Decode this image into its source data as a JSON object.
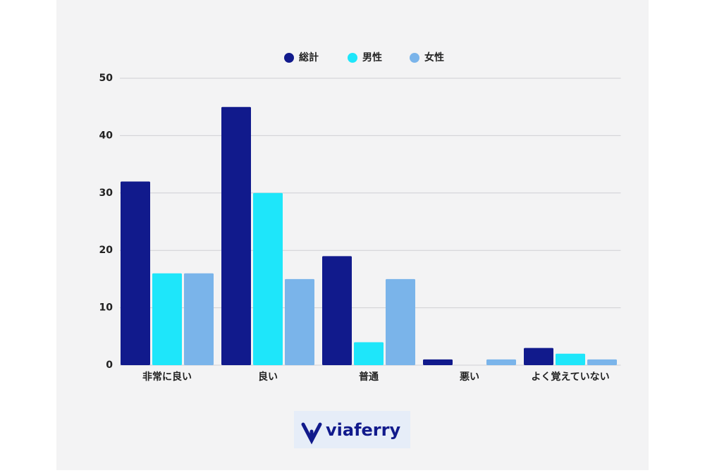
{
  "chart_data": {
    "type": "bar",
    "categories": [
      "非常に良い",
      "良い",
      "普通",
      "悪い",
      "よく覚えていない"
    ],
    "series": [
      {
        "name": "総計",
        "color": "#111a8c",
        "values": [
          32,
          45,
          19,
          1,
          3
        ]
      },
      {
        "name": "男性",
        "color": "#1ee6fa",
        "values": [
          16,
          30,
          4,
          0,
          2
        ]
      },
      {
        "name": "女性",
        "color": "#7ab4ea",
        "values": [
          16,
          15,
          15,
          1,
          1
        ]
      }
    ],
    "ylim": [
      0,
      50
    ],
    "yticks": [
      0,
      10,
      20,
      30,
      40,
      50
    ],
    "grid": true,
    "legend": "top"
  },
  "logo": "viaferry"
}
